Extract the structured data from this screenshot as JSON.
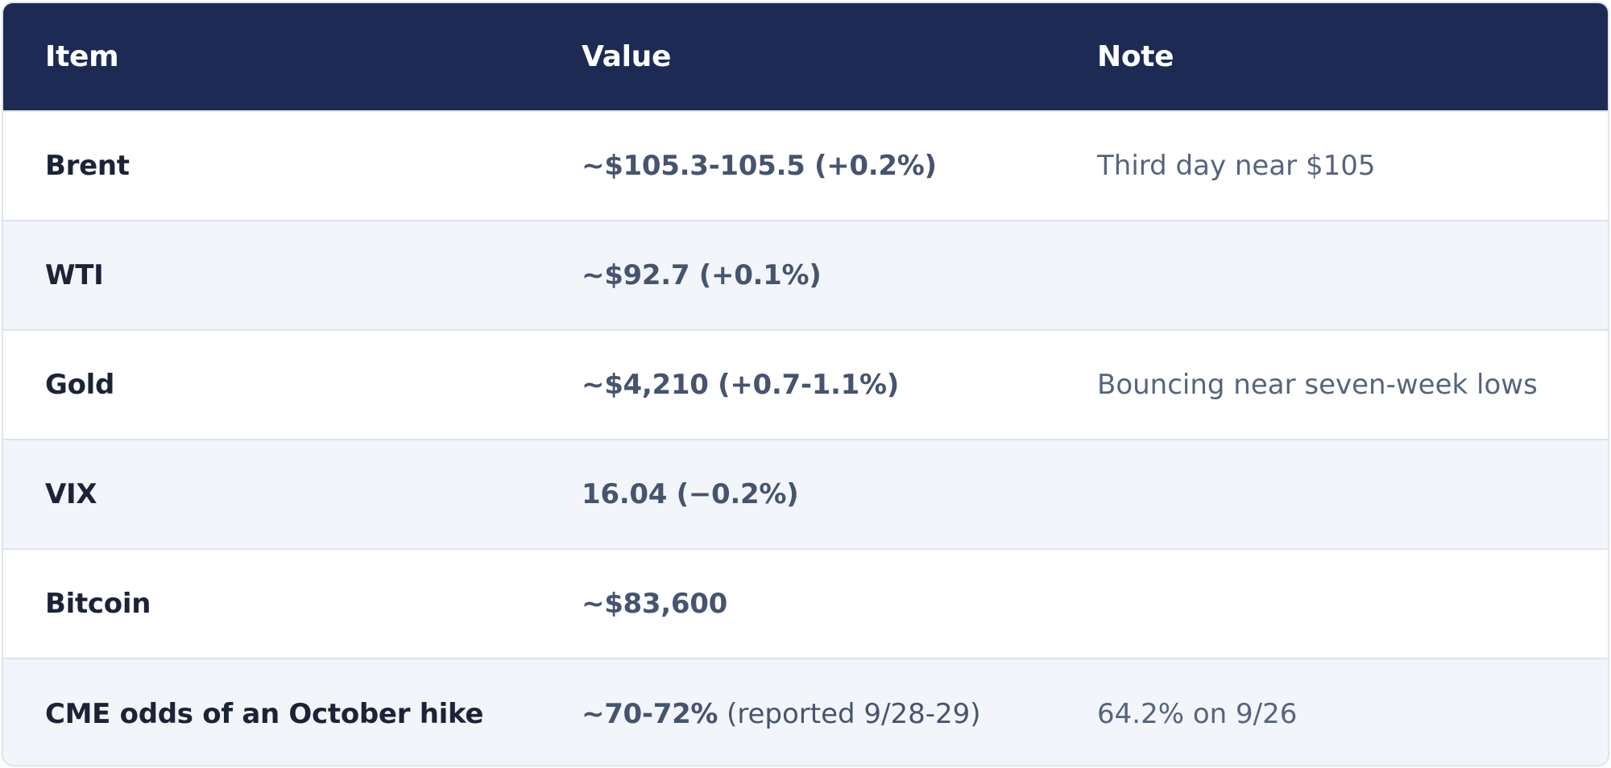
{
  "table": {
    "headers": {
      "item": "Item",
      "value": "Value",
      "note": "Note"
    },
    "rows": [
      {
        "item": "Brent",
        "value": "~$105.3-105.5 (+0.2%)",
        "value_extra": "",
        "note": "Third day near $105"
      },
      {
        "item": "WTI",
        "value": "~$92.7 (+0.1%)",
        "value_extra": "",
        "note": ""
      },
      {
        "item": "Gold",
        "value": "~$4,210 (+0.7-1.1%)",
        "value_extra": "",
        "note": "Bouncing near seven-week lows"
      },
      {
        "item": "VIX",
        "value": "16.04 (−0.2%)",
        "value_extra": "",
        "note": ""
      },
      {
        "item": "Bitcoin",
        "value": "~$83,600",
        "value_extra": "",
        "note": ""
      },
      {
        "item": "CME odds of an October hike",
        "value": "~70-72%",
        "value_extra": " (reported 9/28-29)",
        "note": "64.2% on 9/26"
      }
    ]
  },
  "colors": {
    "header_bg": "#1d2b54",
    "row_alt_bg": "#f2f5fa",
    "border": "#dde3ee"
  }
}
